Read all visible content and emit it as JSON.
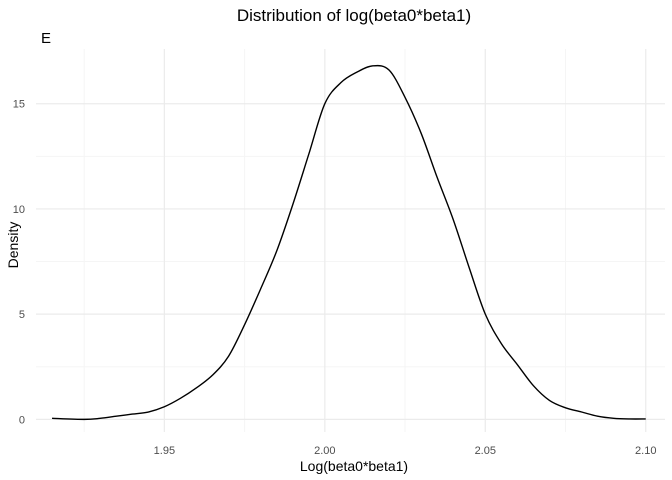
{
  "chart_data": {
    "type": "line",
    "title": "Distribution of log(beta0*beta1)",
    "tag": "E",
    "xlabel": "Log(beta0*beta1)",
    "ylabel": "Density",
    "xlim": [
      1.91,
      2.106
    ],
    "ylim": [
      -0.6,
      17.6
    ],
    "x_ticks": [
      1.95,
      2.0,
      2.05,
      2.1
    ],
    "x_tick_labels": [
      "1.95",
      "2.00",
      "2.05",
      "2.10"
    ],
    "y_ticks": [
      0,
      5,
      10,
      15
    ],
    "y_tick_labels": [
      "0",
      "5",
      "10",
      "15"
    ],
    "grid": true,
    "line_color": "#000000",
    "grid_major_color": "#ebebeb",
    "grid_minor_color": "#f5f5f5",
    "series": [
      {
        "x": [
          1.915,
          1.925,
          1.93,
          1.935,
          1.94,
          1.945,
          1.95,
          1.955,
          1.96,
          1.965,
          1.97,
          1.975,
          1.98,
          1.985,
          1.99,
          1.995,
          2.0,
          2.005,
          2.01,
          2.015,
          2.02,
          2.025,
          2.03,
          2.035,
          2.04,
          2.045,
          2.05,
          2.055,
          2.06,
          2.065,
          2.07,
          2.075,
          2.08,
          2.085,
          2.09,
          2.095,
          2.1
        ],
        "y": [
          0.05,
          0.0,
          0.05,
          0.15,
          0.25,
          0.35,
          0.6,
          1.0,
          1.5,
          2.1,
          3.0,
          4.5,
          6.2,
          8.0,
          10.2,
          12.6,
          15.0,
          16.0,
          16.5,
          16.8,
          16.6,
          15.3,
          13.6,
          11.5,
          9.5,
          7.2,
          5.0,
          3.6,
          2.6,
          1.6,
          0.9,
          0.55,
          0.35,
          0.15,
          0.05,
          0.02,
          0.02
        ]
      }
    ]
  }
}
